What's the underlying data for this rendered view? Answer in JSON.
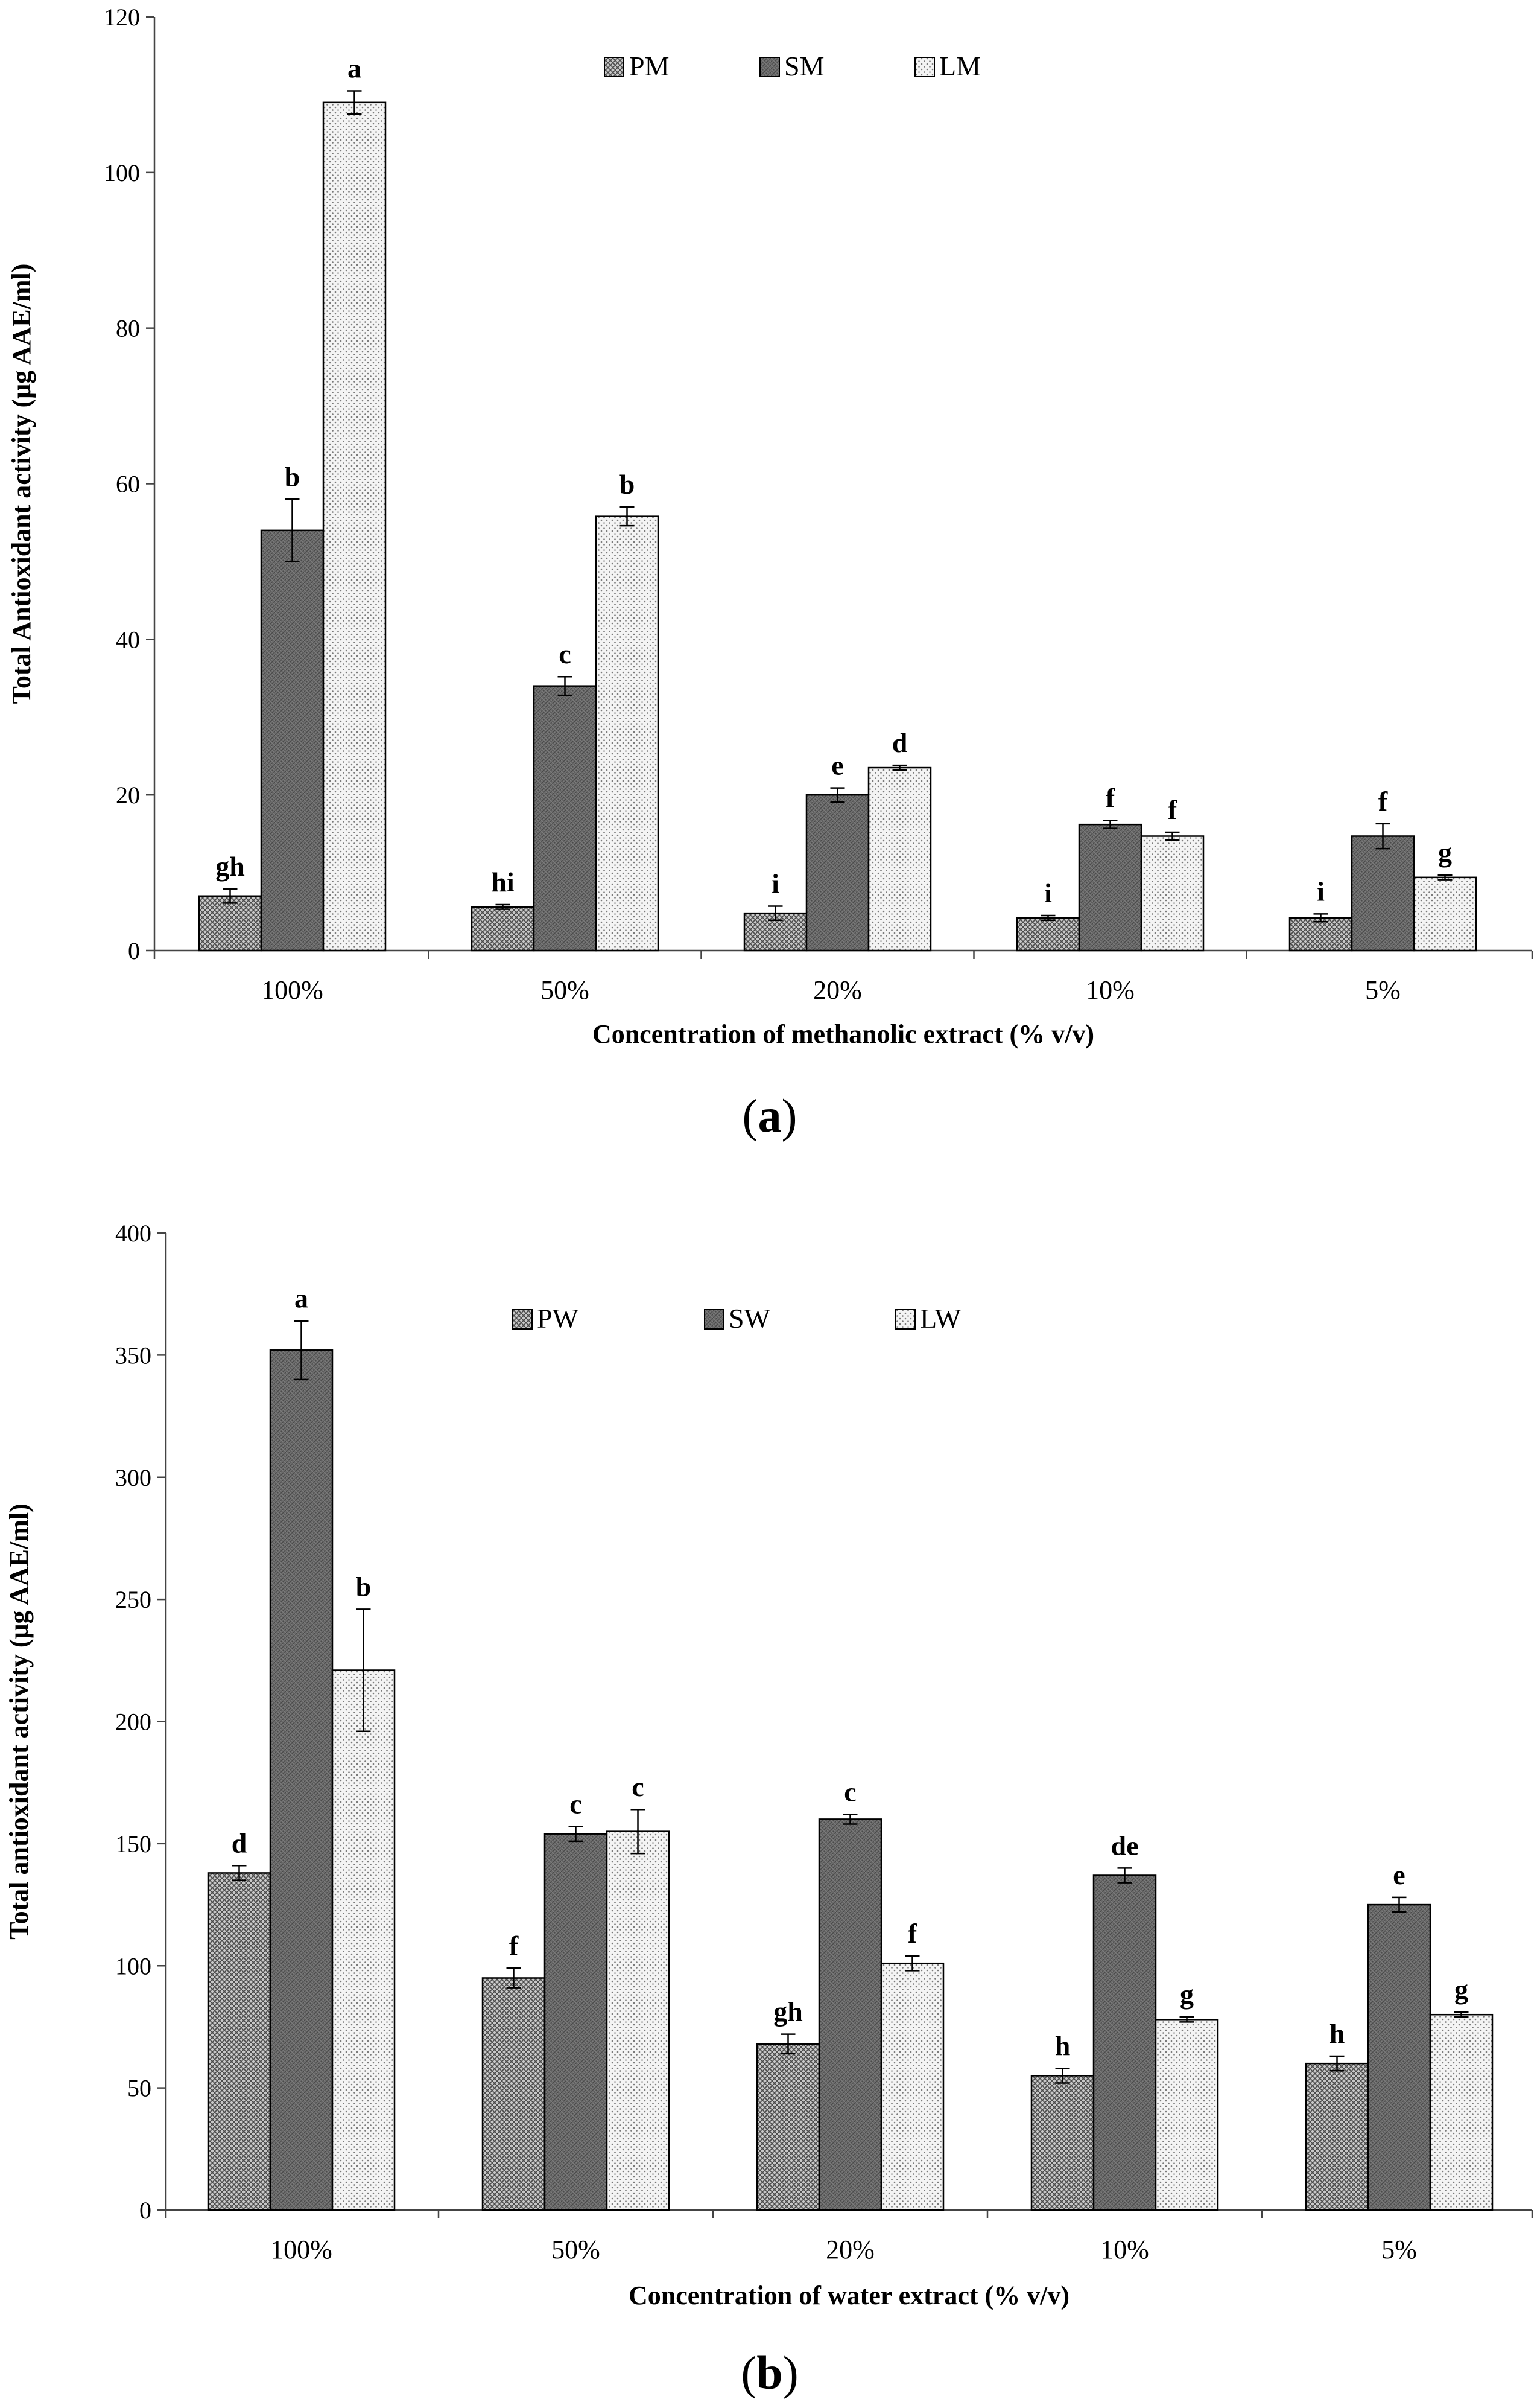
{
  "figure": {
    "panels": [
      {
        "id": "a",
        "label": "a",
        "ylabel": "Total Antioxidant activity (μg AAE/ml)",
        "xlabel": "Concentration of methanolic extract (% v/v)"
      },
      {
        "id": "b",
        "label": "b",
        "ylabel": "Total antioxidant activity (μg AAE/ml)",
        "xlabel": "Concentration of water extract (% v/v)"
      }
    ]
  },
  "chart_data": [
    {
      "type": "bar",
      "title": "",
      "xlabel": "Concentration of methanolic extract (% v/v)",
      "ylabel": "Total Antioxidant activity (μg AAE/ml)",
      "categories": [
        "100%",
        "50%",
        "20%",
        "10%",
        "5%"
      ],
      "ylim": [
        0,
        120
      ],
      "yticks": [
        0,
        20,
        40,
        60,
        80,
        100,
        120
      ],
      "legend_position": "top-center",
      "series": [
        {
          "name": "PM",
          "pattern": "crosshatch",
          "values": [
            7.0,
            5.6,
            4.8,
            4.2,
            4.2
          ],
          "errors": [
            0.9,
            0.3,
            0.9,
            0.3,
            0.5
          ],
          "letters": [
            "gh",
            "hi",
            "i",
            "i",
            "i"
          ]
        },
        {
          "name": "SM",
          "pattern": "dark",
          "values": [
            54.0,
            34.0,
            20.0,
            16.2,
            14.7
          ],
          "errors": [
            4.0,
            1.2,
            0.9,
            0.5,
            1.6
          ],
          "letters": [
            "b",
            "c",
            "e",
            "f",
            "f"
          ]
        },
        {
          "name": "LM",
          "pattern": "dots",
          "values": [
            109.0,
            55.8,
            23.5,
            14.7,
            9.4
          ],
          "errors": [
            1.5,
            1.2,
            0.3,
            0.5,
            0.3
          ],
          "letters": [
            "a",
            "b",
            "d",
            "f",
            "g"
          ]
        }
      ]
    },
    {
      "type": "bar",
      "title": "",
      "xlabel": "Concentration of water extract (% v/v)",
      "ylabel": "Total antioxidant activity (μg AAE/ml)",
      "categories": [
        "100%",
        "50%",
        "20%",
        "10%",
        "5%"
      ],
      "ylim": [
        0,
        400
      ],
      "yticks": [
        0,
        50,
        100,
        150,
        200,
        250,
        300,
        350,
        400
      ],
      "legend_position": "top-center",
      "series": [
        {
          "name": "PW",
          "pattern": "crosshatch",
          "values": [
            138,
            95,
            68,
            55,
            60
          ],
          "errors": [
            3,
            4,
            4,
            3,
            3
          ],
          "letters": [
            "d",
            "f",
            "gh",
            "h",
            "h"
          ]
        },
        {
          "name": "SW",
          "pattern": "dark",
          "values": [
            352,
            154,
            160,
            137,
            125
          ],
          "errors": [
            12,
            3,
            2,
            3,
            3
          ],
          "letters": [
            "a",
            "c",
            "c",
            "de",
            "e"
          ]
        },
        {
          "name": "LW",
          "pattern": "dots",
          "values": [
            221,
            155,
            101,
            78,
            80
          ],
          "errors": [
            25,
            9,
            3,
            1,
            1
          ],
          "letters": [
            "b",
            "c",
            "f",
            "g",
            "g"
          ]
        }
      ]
    }
  ]
}
